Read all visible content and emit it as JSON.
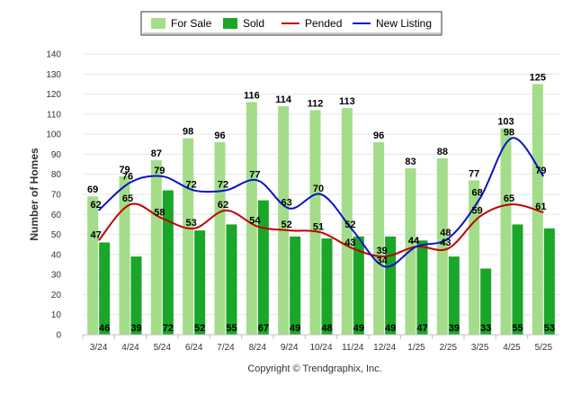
{
  "chart_data": {
    "type": "bar",
    "categories": [
      "3/24",
      "4/24",
      "5/24",
      "6/24",
      "7/24",
      "8/24",
      "9/24",
      "10/24",
      "11/24",
      "12/24",
      "1/25",
      "2/25",
      "3/25",
      "4/25",
      "5/25"
    ],
    "series": [
      {
        "name": "For Sale",
        "kind": "bar",
        "color": "#a3dd8a",
        "values": [
          69,
          79,
          87,
          98,
          96,
          116,
          114,
          112,
          113,
          96,
          83,
          88,
          77,
          103,
          125
        ]
      },
      {
        "name": "Sold",
        "kind": "bar",
        "color": "#1aa628",
        "values": [
          46,
          39,
          72,
          52,
          55,
          67,
          49,
          48,
          49,
          49,
          47,
          39,
          33,
          55,
          53
        ]
      },
      {
        "name": "Pended",
        "kind": "line",
        "color": "#c00000",
        "values": [
          47,
          65,
          58,
          53,
          62,
          54,
          52,
          51,
          43,
          39,
          44,
          43,
          59,
          65,
          61
        ]
      },
      {
        "name": "New Listing",
        "kind": "line",
        "color": "#0b12c8",
        "values": [
          62,
          76,
          79,
          72,
          72,
          77,
          63,
          70,
          52,
          34,
          44,
          48,
          68,
          98,
          79
        ]
      }
    ],
    "ylabel": "Number of Homes",
    "xlabel": "",
    "ylim": [
      0,
      140
    ],
    "yticks": [
      0,
      10,
      20,
      30,
      40,
      50,
      60,
      70,
      80,
      90,
      100,
      110,
      120,
      130,
      140
    ],
    "grid": true,
    "legend": "top-center",
    "footer": "Copyright © Trendgraphix, Inc."
  }
}
